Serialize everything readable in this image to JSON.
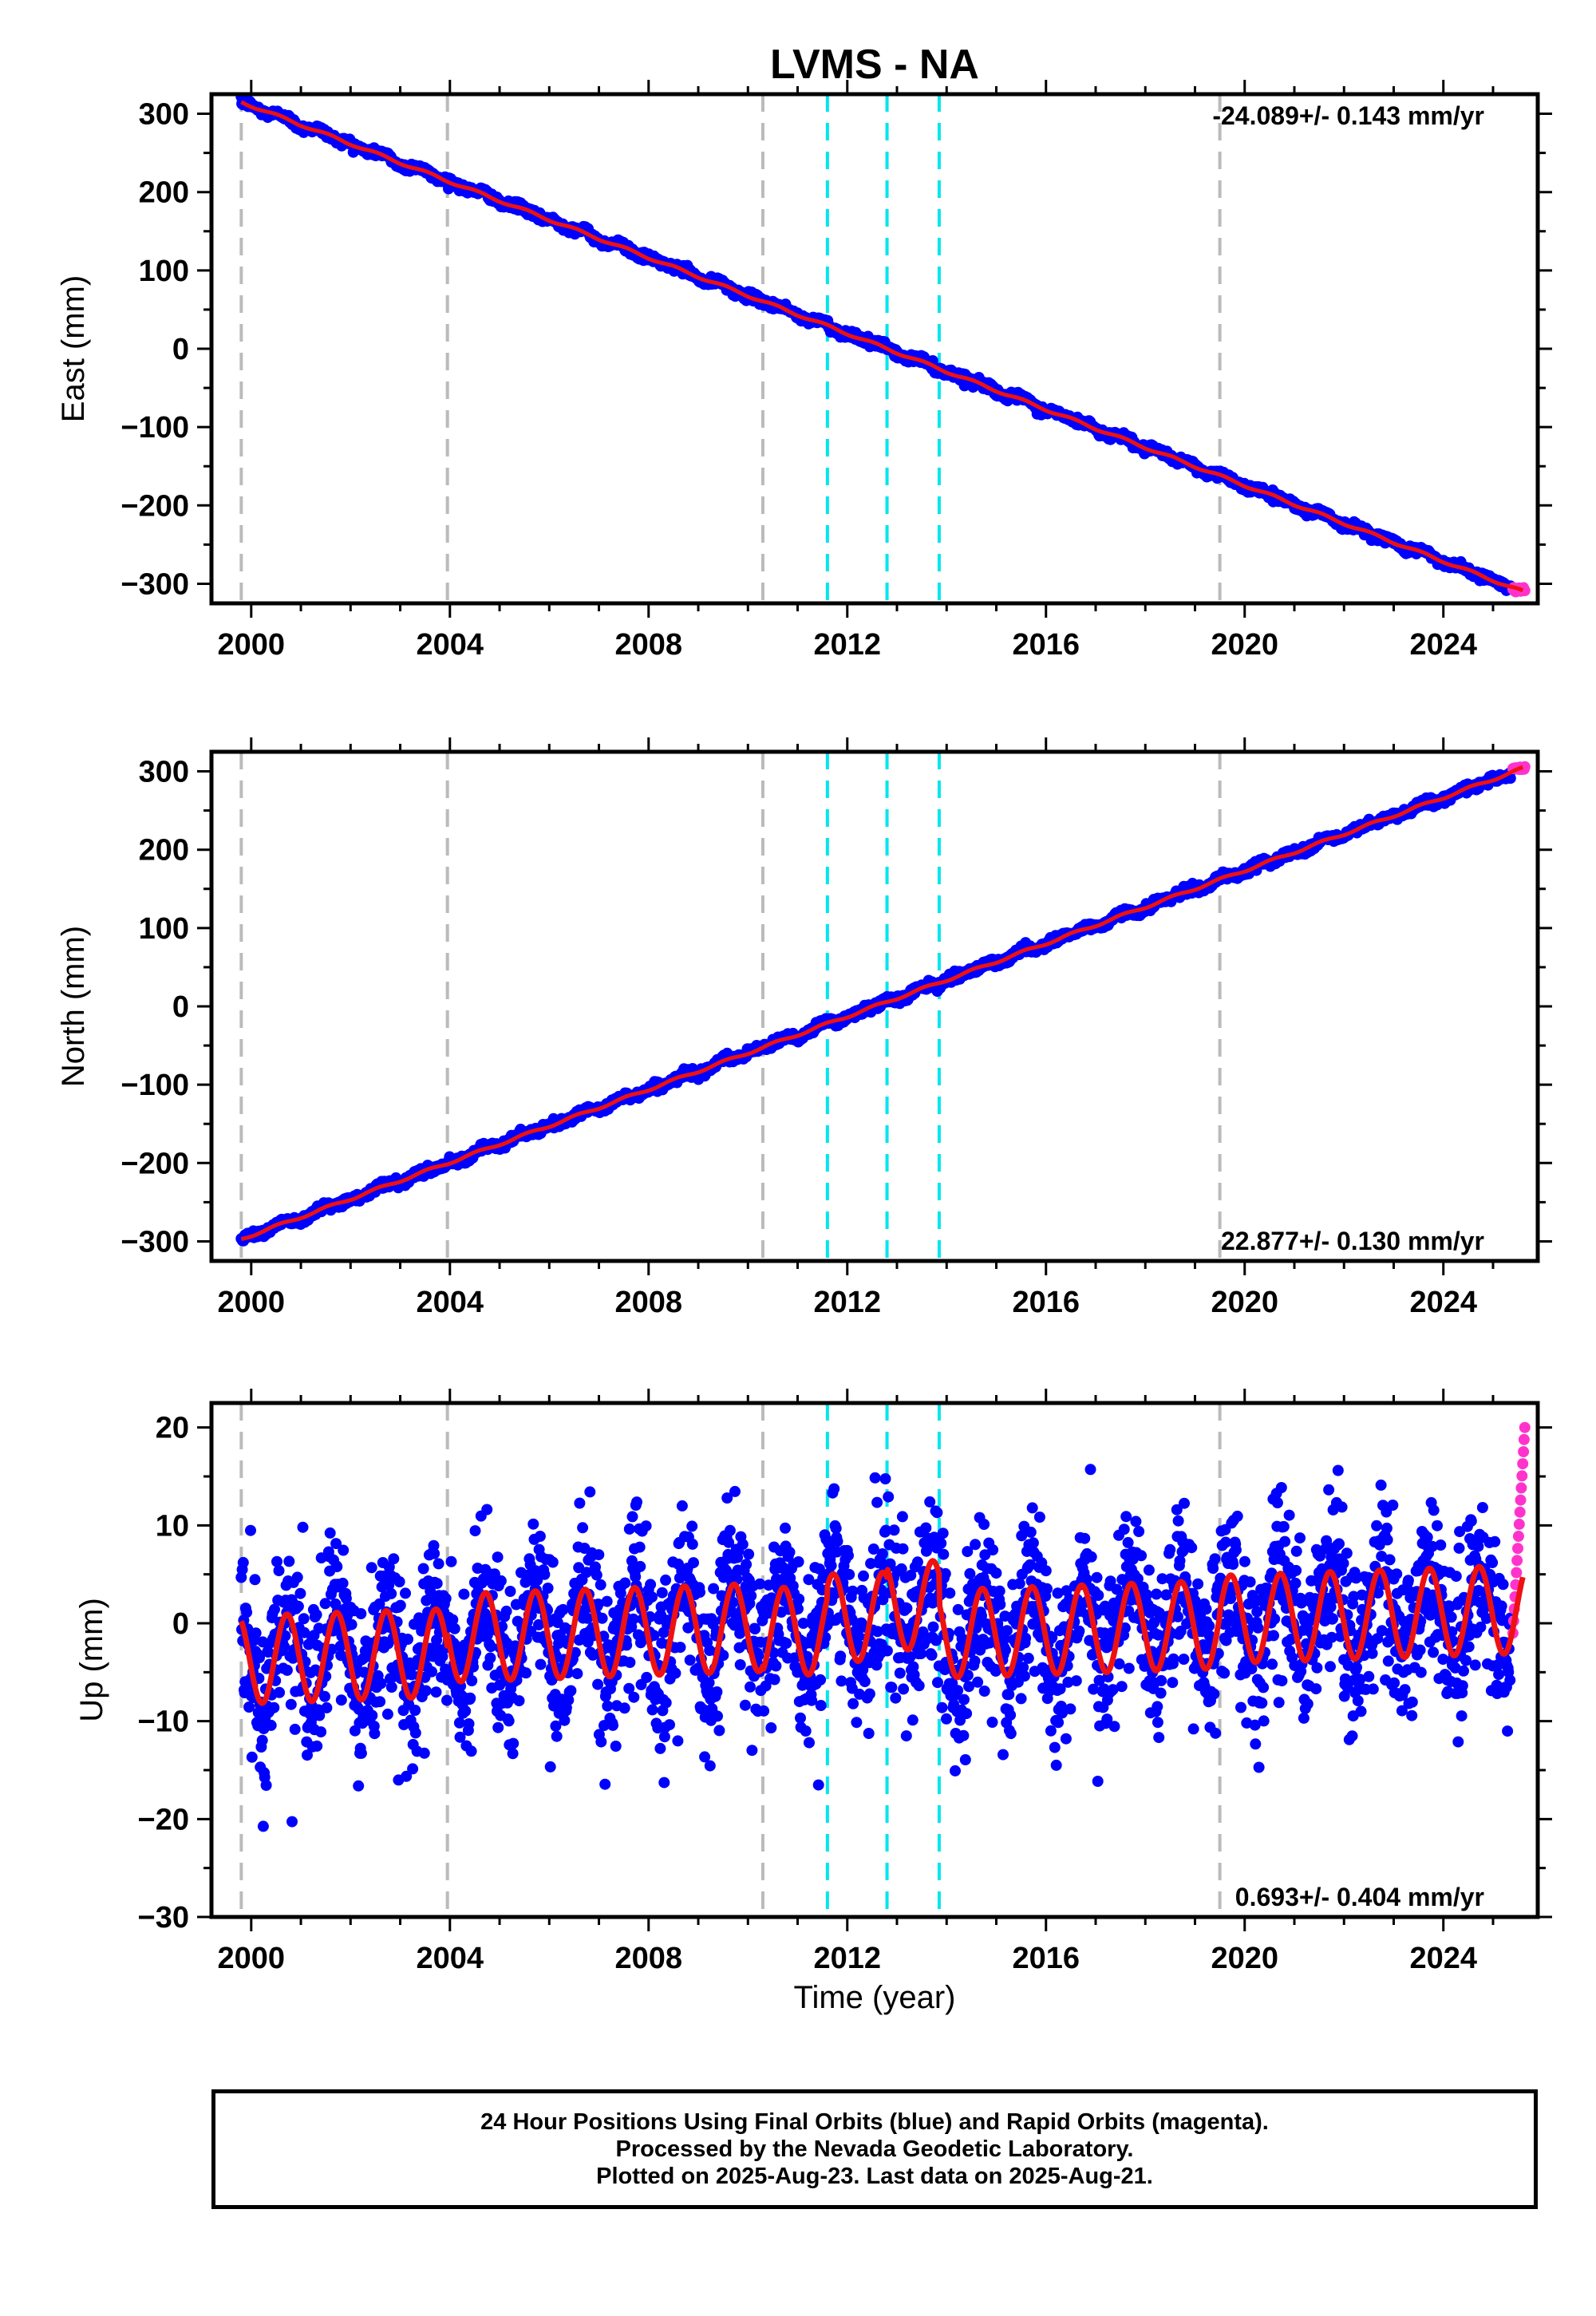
{
  "title": "LVMS - NA",
  "x_axis_label": "Time (year)",
  "colors": {
    "final_orbits": "#0000ff",
    "rapid_orbits": "#ff33cc",
    "model": "#ee1111",
    "antenna_change": "#bbbbbb",
    "earthquake": "#00e5ee"
  },
  "footer": {
    "line1": "24 Hour Positions Using Final Orbits (blue) and Rapid Orbits (magenta).",
    "line2": "Processed by the Nevada Geodetic Laboratory.",
    "line3": "Plotted on 2025-Aug-23. Last data on 2025-Aug-21."
  },
  "chart_data": [
    {
      "type": "scatter",
      "panel": "east",
      "title": "LVMS - NA",
      "ylabel": "East (mm)",
      "xlim": [
        1999.2,
        2025.9
      ],
      "ylim": [
        -325,
        325
      ],
      "xticks": [
        "2000",
        "2004",
        "2008",
        "2012",
        "2016",
        "2020",
        "2024"
      ],
      "yticks": [
        "300",
        "200",
        "100",
        "0",
        "−100",
        "−200",
        "−300"
      ],
      "rate_text": "-24.089+/- 0.143 mm/yr",
      "rate_position": "top-right",
      "grey_dashed_lines_years": [
        1999.8,
        2003.95,
        2010.3,
        2019.5
      ],
      "cyan_dashed_lines_years": [
        2011.6,
        2012.8,
        2013.85
      ],
      "series": [
        {
          "role": "final",
          "start": {
            "x": 1999.8,
            "y": 315
          },
          "end": {
            "x": 2025.35,
            "y": -304
          },
          "scatter_mm": 2.5
        },
        {
          "role": "rapid",
          "x_range": [
            2025.4,
            2025.64
          ],
          "y": -307
        },
        {
          "role": "model",
          "x_range": [
            1999.8,
            2025.6
          ],
          "rate_mm_per_year": -24.089
        }
      ]
    },
    {
      "type": "scatter",
      "panel": "north",
      "ylabel": "North (mm)",
      "xlim": [
        1999.2,
        2025.9
      ],
      "ylim": [
        -325,
        325
      ],
      "xticks": [
        "2000",
        "2004",
        "2008",
        "2012",
        "2016",
        "2020",
        "2024"
      ],
      "yticks": [
        "300",
        "200",
        "100",
        "0",
        "−100",
        "−200",
        "−300"
      ],
      "rate_text": "22.877+/- 0.130 mm/yr",
      "rate_position": "bottom-right",
      "grey_dashed_lines_years": [
        1999.8,
        2003.95,
        2010.3,
        2019.5
      ],
      "cyan_dashed_lines_years": [
        2011.6,
        2012.8,
        2013.85
      ],
      "series": [
        {
          "role": "final",
          "start": {
            "x": 1999.8,
            "y": -297
          },
          "end": {
            "x": 2025.35,
            "y": 298
          },
          "scatter_mm": 2.5
        },
        {
          "role": "rapid",
          "x_range": [
            2025.4,
            2025.64
          ],
          "y": 304
        },
        {
          "role": "model",
          "x_range": [
            1999.8,
            2025.6
          ],
          "rate_mm_per_year": 22.877
        }
      ]
    },
    {
      "type": "scatter",
      "panel": "up",
      "ylabel": "Up (mm)",
      "xlabel": "Time (year)",
      "xlim": [
        1999.2,
        2025.9
      ],
      "ylim": [
        -30,
        22.5
      ],
      "xticks": [
        "2000",
        "2004",
        "2008",
        "2012",
        "2016",
        "2020",
        "2024"
      ],
      "yticks": [
        "20",
        "10",
        "0",
        "−10",
        "−20",
        "−30"
      ],
      "rate_text": "0.693+/- 0.404 mm/yr",
      "rate_position": "bottom-right",
      "grey_dashed_lines_years": [
        1999.8,
        2003.95,
        2010.3,
        2019.5
      ],
      "cyan_dashed_lines_years": [
        2011.6,
        2012.8,
        2013.85
      ],
      "series": [
        {
          "role": "final",
          "x_range": [
            1999.8,
            2025.35
          ],
          "annual_amplitude_mm": 5,
          "noise_sd_mm": 4.2
        },
        {
          "role": "rapid",
          "x_range": [
            2025.4,
            2025.64
          ],
          "y_range": [
            -1,
            20
          ]
        },
        {
          "role": "model",
          "x_range": [
            1999.8,
            2025.6
          ],
          "rate_mm_per_year": 0.693,
          "annual_amplitude_mm": 4.5,
          "offsets_years": [
            2003.95,
            2010.3,
            2011.6,
            2012.8,
            2013.85,
            2019.5
          ]
        }
      ]
    }
  ]
}
